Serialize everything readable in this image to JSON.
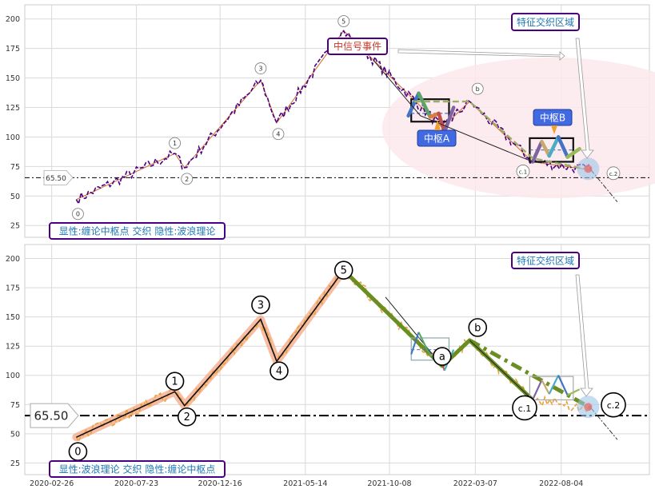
{
  "chart_data": [
    {
      "type": "line",
      "panel": "top",
      "ylim": [
        15,
        212
      ],
      "y_ticks": [
        25,
        50,
        75,
        100,
        125,
        150,
        175,
        200
      ],
      "grid": true,
      "hline": {
        "value": 65.5,
        "label": "65.50"
      },
      "box_label": "显性:缠论中枢点 交织 隐性:波浪理论",
      "event_label": "中信号事件",
      "region_label": "特征交织区域",
      "pivot_labels": [
        "中枢A",
        "中枢B"
      ],
      "wave_points": [
        {
          "label": "0",
          "date": "2020-04-09",
          "value": 47
        },
        {
          "label": "1",
          "date": "2020-09-28",
          "value": 86
        },
        {
          "label": "2",
          "date": "2020-10-15",
          "value": 74
        },
        {
          "label": "3",
          "date": "2021-02-25",
          "value": 148
        },
        {
          "label": "4",
          "date": "2021-03-25",
          "value": 112
        },
        {
          "label": "5",
          "date": "2021-07-20",
          "value": 190
        },
        {
          "label": "a",
          "date": "2022-01-08",
          "value": 108
        },
        {
          "label": "b",
          "date": "2022-02-25",
          "value": 130
        },
        {
          "label": "c.1",
          "date": "2022-06-15",
          "value": 79
        },
        {
          "label": "c.2",
          "date": "2022-09-25",
          "value": 72
        }
      ],
      "price_series_sample": {
        "name": "price",
        "x": [
          "2020-04-09",
          "2020-06-01",
          "2020-08-01",
          "2020-09-28",
          "2020-10-15",
          "2020-12-01",
          "2021-02-25",
          "2021-03-25",
          "2021-05-14",
          "2021-07-20",
          "2021-09-01",
          "2021-10-20",
          "2021-12-01",
          "2022-02-25",
          "2022-04-15",
          "2022-06-15",
          "2022-08-04",
          "2022-09-25"
        ],
        "values": [
          47,
          62,
          72,
          86,
          74,
          100,
          148,
          112,
          160,
          190,
          170,
          140,
          120,
          130,
          95,
          79,
          92,
          72
        ]
      }
    },
    {
      "type": "line",
      "panel": "bottom",
      "ylim": [
        15,
        212
      ],
      "y_ticks": [
        25,
        50,
        75,
        100,
        125,
        150,
        175,
        200
      ],
      "x_ticks": [
        "2020-02-26",
        "2020-07-23",
        "2020-12-16",
        "2021-05-14",
        "2021-10-08",
        "2022-03-07",
        "2022-08-04"
      ],
      "grid": true,
      "hline": {
        "value": 65.5,
        "label": "65.50"
      },
      "box_label": "显性:波浪理论 交织 隐性:缠论中枢点",
      "region_label": "特征交织区域",
      "wave_points": [
        {
          "label": "0",
          "date": "2020-04-09",
          "value": 47
        },
        {
          "label": "1",
          "date": "2020-09-28",
          "value": 86
        },
        {
          "label": "2",
          "date": "2020-10-15",
          "value": 74
        },
        {
          "label": "3",
          "date": "2021-02-25",
          "value": 148
        },
        {
          "label": "4",
          "date": "2021-03-25",
          "value": 112
        },
        {
          "label": "5",
          "date": "2021-07-20",
          "value": 190
        },
        {
          "label": "a",
          "date": "2022-01-08",
          "value": 108
        },
        {
          "label": "b",
          "date": "2022-02-25",
          "value": 130
        },
        {
          "label": "c.1",
          "date": "2022-06-15",
          "value": 79
        },
        {
          "label": "c.2",
          "date": "2022-09-25",
          "value": 72
        }
      ]
    }
  ],
  "colors": {
    "top_price": "#4b0082",
    "bottom_price": "#e8a33a",
    "wave_thick": "#6b8e23",
    "wave_glow": "#f4a582",
    "pivot_blue": "#4472c4",
    "box_border": "#4b0082",
    "box_text": "#1f77b4",
    "region_fill": "#fce8ec",
    "pivot_label_bg": "#4169e1"
  }
}
